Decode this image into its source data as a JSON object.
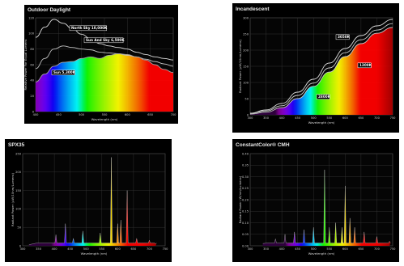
{
  "chart_data": [
    {
      "type": "area",
      "title": "Outdoor Daylight",
      "xlabel": "Wavelength (nm)",
      "ylabel": "Relative Power For Equal Lumens",
      "xlim": [
        400,
        700
      ],
      "ylim": [
        0,
        120
      ],
      "x_ticks": [
        "400",
        "450",
        "500",
        "550",
        "600",
        "650",
        "700"
      ],
      "y_ticks": [
        "0",
        "20",
        "40",
        "60",
        "80",
        "100",
        "120"
      ],
      "grid": true,
      "series": [
        {
          "name": "North Sky 10,000K",
          "color": "#e6e6e6",
          "x": [
            400,
            420,
            440,
            460,
            480,
            500,
            520,
            540,
            560,
            580,
            600,
            620,
            640,
            660,
            680,
            700
          ],
          "values": [
            95,
            108,
            118,
            113,
            106,
            99,
            93,
            87,
            84,
            82,
            80,
            76,
            73,
            70,
            68,
            66
          ]
        },
        {
          "name": "Sun And Sky 6,500K",
          "color": "#c8c8c8",
          "x": [
            400,
            420,
            440,
            460,
            480,
            500,
            520,
            540,
            560,
            580,
            600,
            620,
            640,
            660,
            680,
            700
          ],
          "values": [
            55,
            68,
            80,
            84,
            82,
            80,
            79,
            76,
            75,
            74,
            72,
            70,
            67,
            64,
            61,
            58
          ]
        },
        {
          "name": "Sun 5,300K",
          "color": "#a8a8a8",
          "x": [
            400,
            420,
            440,
            460,
            480,
            500,
            520,
            540,
            560,
            580,
            600,
            620,
            640,
            660,
            680,
            700
          ],
          "values": [
            38,
            48,
            58,
            63,
            64,
            68,
            70,
            68,
            72,
            74,
            73,
            70,
            66,
            60,
            54,
            50
          ]
        }
      ]
    },
    {
      "type": "area",
      "title": "Incandescent",
      "xlabel": "Wavelength (nm)",
      "ylabel": "Radiant Power (µW/10nm/Lumens)",
      "xlim": [
        300,
        750
      ],
      "ylim": [
        0,
        300
      ],
      "x_ticks": [
        "300",
        "350",
        "400",
        "450",
        "500",
        "550",
        "600",
        "650",
        "700",
        "750"
      ],
      "y_ticks": [
        "0",
        "50",
        "100",
        "150",
        "200",
        "250",
        "300"
      ],
      "grid": true,
      "series": [
        {
          "name": "3050K",
          "color": "#e6e6e6",
          "x": [
            300,
            350,
            400,
            450,
            500,
            550,
            600,
            650,
            700,
            750
          ],
          "values": [
            5,
            15,
            35,
            70,
            110,
            160,
            205,
            245,
            275,
            295
          ]
        },
        {
          "name": "1300K",
          "color": "#cccccc",
          "x": [
            300,
            350,
            400,
            450,
            500,
            550,
            600,
            650,
            700,
            750
          ],
          "values": [
            2,
            8,
            22,
            50,
            88,
            132,
            180,
            220,
            252,
            270
          ]
        },
        {
          "name": "2800K",
          "color": "#d8d8d8",
          "x": [
            300,
            350,
            400,
            450,
            500,
            550,
            600,
            650,
            700,
            750
          ],
          "values": [
            4,
            12,
            28,
            60,
            98,
            145,
            192,
            232,
            262,
            282
          ]
        }
      ]
    },
    {
      "type": "area",
      "title": "SPX35",
      "xlabel": "Wavelength (nm)",
      "ylabel": "Radiant Power (µW/10nm/Lumens)",
      "xlim": [
        300,
        750
      ],
      "ylim": [
        0,
        250
      ],
      "x_ticks": [
        "300",
        "350",
        "400",
        "450",
        "500",
        "550",
        "600",
        "650",
        "700",
        "750"
      ],
      "y_ticks": [
        "0",
        "50",
        "100",
        "150",
        "200",
        "250"
      ],
      "grid": true,
      "series": [
        {
          "name": "",
          "color": "#ffffff",
          "x": [
            320,
            380,
            405,
            435,
            460,
            490,
            545,
            580,
            600,
            610,
            630,
            660,
            700,
            720
          ],
          "values": [
            3,
            8,
            30,
            60,
            20,
            40,
            35,
            240,
            60,
            70,
            150,
            20,
            15,
            5
          ]
        }
      ]
    },
    {
      "type": "area",
      "title": "ConstantColor® CMH",
      "xlabel": "Wavelength (nm)",
      "ylabel": "Radiant Power (W/nm/Lumens)",
      "xlim": [
        300,
        750
      ],
      "ylim": [
        0,
        0.4
      ],
      "x_ticks": [
        "300",
        "350",
        "400",
        "450",
        "500",
        "550",
        "600",
        "650",
        "700",
        "750"
      ],
      "y_ticks": [
        "0.00",
        "0.05",
        "0.10",
        "0.15",
        "0.20",
        "0.25",
        "0.30",
        "0.35",
        "0.40"
      ],
      "grid": true,
      "series": [
        {
          "name": "",
          "color": "#ffffff",
          "x": [
            340,
            380,
            410,
            440,
            470,
            500,
            535,
            550,
            570,
            590,
            600,
            615,
            630,
            660,
            700,
            740
          ],
          "values": [
            0.01,
            0.03,
            0.05,
            0.06,
            0.07,
            0.08,
            0.33,
            0.08,
            0.1,
            0.08,
            0.26,
            0.12,
            0.08,
            0.06,
            0.04,
            0.02
          ]
        }
      ]
    }
  ]
}
